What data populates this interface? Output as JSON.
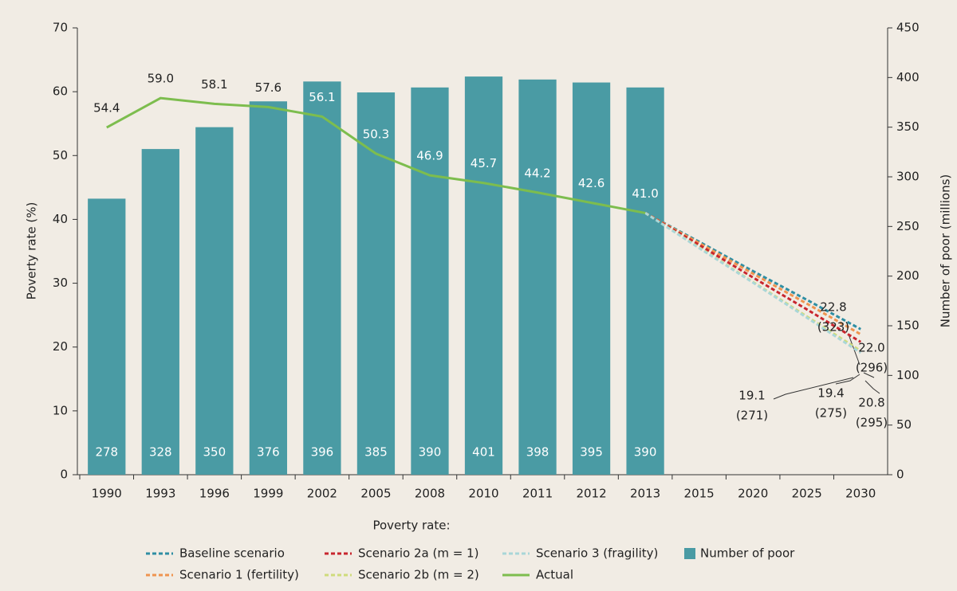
{
  "chart_data": {
    "type": "bar",
    "categories": [
      "1990",
      "1993",
      "1996",
      "1999",
      "2002",
      "2005",
      "2008",
      "2010",
      "2011",
      "2012",
      "2013",
      "2015",
      "2020",
      "2025",
      "2030"
    ],
    "y_label": "Poverty rate (%)",
    "y2_label": "Number of poor (millions)",
    "legend_title": "Poverty rate:",
    "ylim": [
      0,
      70
    ],
    "yticks": [
      0,
      10,
      20,
      30,
      40,
      50,
      60,
      70
    ],
    "y2lim": [
      0,
      450
    ],
    "y2ticks": [
      0,
      50,
      100,
      150,
      200,
      250,
      300,
      350,
      400,
      450
    ],
    "series": [
      {
        "name": "Baseline scenario",
        "type": "line",
        "style": "dashed",
        "color": "#2f8ea3",
        "values": [
          null,
          null,
          null,
          null,
          null,
          null,
          null,
          null,
          null,
          null,
          41.0,
          36.5,
          31.9,
          27.4,
          22.8
        ]
      },
      {
        "name": "Scenario 1 (fertility)",
        "type": "line",
        "style": "dashed",
        "color": "#ef9450",
        "values": [
          null,
          null,
          null,
          null,
          null,
          null,
          null,
          null,
          null,
          null,
          41.0,
          36.3,
          31.5,
          26.8,
          22.0
        ]
      },
      {
        "name": "Scenario 2a  (m = 1)",
        "type": "line",
        "style": "dashed",
        "color": "#c8262e",
        "values": [
          null,
          null,
          null,
          null,
          null,
          null,
          null,
          null,
          null,
          null,
          41.0,
          36.0,
          30.9,
          25.9,
          20.8
        ]
      },
      {
        "name": "Scenario 2b (m = 2)",
        "type": "line",
        "style": "dashed",
        "color": "#cfdc7c",
        "values": [
          null,
          null,
          null,
          null,
          null,
          null,
          null,
          null,
          null,
          null,
          41.0,
          35.6,
          30.2,
          24.8,
          19.4
        ]
      },
      {
        "name": "Scenario 3 (fragility)",
        "type": "line",
        "style": "dashed",
        "color": "#a9d6d8",
        "values": [
          null,
          null,
          null,
          null,
          null,
          null,
          null,
          null,
          null,
          null,
          41.0,
          35.5,
          30.1,
          24.6,
          19.1
        ]
      },
      {
        "name": "Actual",
        "type": "line",
        "style": "solid",
        "color": "#7dbd4e",
        "values": [
          54.4,
          59.0,
          58.1,
          57.6,
          56.1,
          50.3,
          46.9,
          45.7,
          44.2,
          42.6,
          41.0,
          null,
          null,
          null,
          null
        ],
        "value_labels": [
          "54.4",
          "59.0",
          "58.1",
          "57.6",
          "56.1",
          "50.3",
          "46.9",
          "45.7",
          "44.2",
          "42.6",
          "41.0",
          null,
          null,
          null,
          null
        ]
      },
      {
        "name": "Number of poor",
        "type": "bar",
        "axis": "y2",
        "color": "#4a9ba4",
        "values": [
          278,
          328,
          350,
          376,
          396,
          385,
          390,
          401,
          398,
          395,
          390,
          null,
          null,
          null,
          null
        ]
      }
    ],
    "annotations": [
      {
        "lines": [
          "22.8",
          "(323)"
        ]
      },
      {
        "lines": [
          "22.0",
          "(296)"
        ]
      },
      {
        "lines": [
          "20.8",
          "(295)"
        ]
      },
      {
        "lines": [
          "19.4",
          "(275)"
        ]
      },
      {
        "lines": [
          "19.1",
          "(271)"
        ]
      }
    ]
  }
}
